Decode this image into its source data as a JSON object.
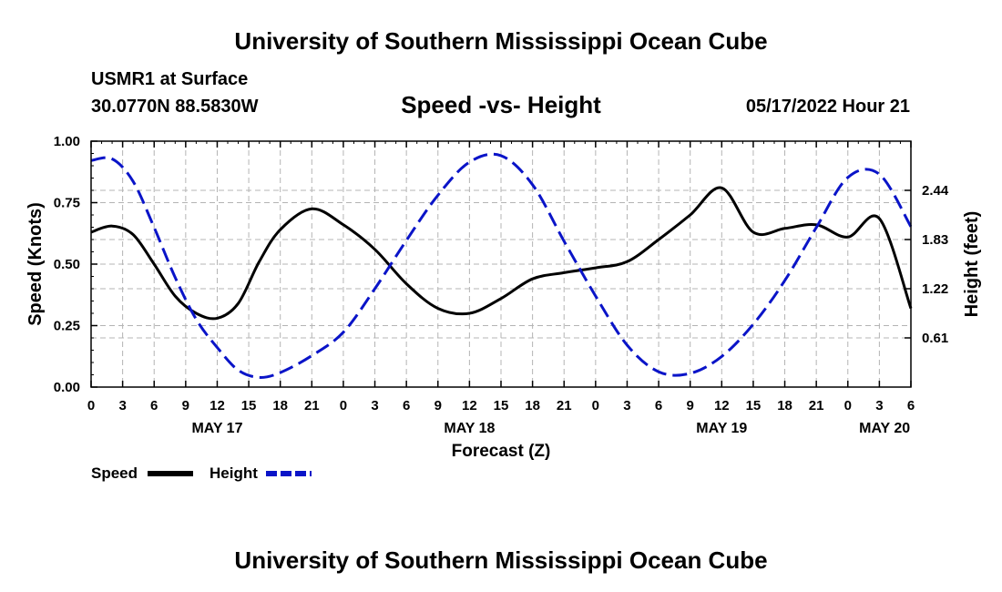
{
  "page": {
    "top_title": "University of Southern Mississippi Ocean Cube",
    "bottom_title": "University of Southern Mississippi Ocean Cube",
    "station": "USMR1 at Surface",
    "location": "30.0770N  88.5830W",
    "chart_title": "Speed -vs- Height",
    "timestamp": "05/17/2022 Hour 21"
  },
  "colors": {
    "speed": "#000000",
    "height": "#0a14c8",
    "grid": "#b4b4b4"
  },
  "chart_data": {
    "type": "line",
    "title": "Speed -vs- Height",
    "xlabel": "Forecast (Z)",
    "ylabel": "Speed (Knots)",
    "y2label": "Height (feet)",
    "x_unit": "hours since 05/17/2022 00Z",
    "xlim": [
      0,
      78
    ],
    "ylim": [
      0,
      1
    ],
    "y2lim": [
      0,
      3.05
    ],
    "grid": true,
    "x_ticks": [
      0,
      3,
      6,
      9,
      12,
      15,
      18,
      21,
      24,
      27,
      30,
      33,
      36,
      39,
      42,
      45,
      48,
      51,
      54,
      57,
      60,
      63,
      66,
      69,
      72,
      75,
      78
    ],
    "x_tick_labels": [
      "0",
      "3",
      "6",
      "9",
      "12",
      "15",
      "18",
      "21",
      "0",
      "3",
      "6",
      "9",
      "12",
      "15",
      "18",
      "21",
      "0",
      "3",
      "6",
      "9",
      "12",
      "15",
      "18",
      "21",
      "0",
      "3",
      "6"
    ],
    "date_labels": [
      {
        "label": "MAY 17",
        "x": 12
      },
      {
        "label": "MAY 18",
        "x": 36
      },
      {
        "label": "MAY 19",
        "x": 60
      },
      {
        "label": "MAY 20",
        "x": 75.5
      }
    ],
    "y_ticks": [
      0,
      0.25,
      0.5,
      0.75,
      1.0
    ],
    "y_tick_labels": [
      "0.00",
      "0.25",
      "0.50",
      "0.75",
      "1.00"
    ],
    "y2_ticks": [
      0.61,
      1.22,
      1.83,
      2.44
    ],
    "y2_tick_labels": [
      "0.61",
      "1.22",
      "1.83",
      "2.44"
    ],
    "legend": {
      "position": "bottom-left",
      "entries": [
        "Speed",
        "Height"
      ]
    },
    "series": [
      {
        "name": "Speed",
        "axis": "left",
        "style": "solid",
        "x": [
          0,
          2,
          4,
          6,
          8,
          10,
          12,
          14,
          16,
          18,
          21,
          24,
          27,
          30,
          33,
          36,
          39,
          42,
          45,
          48,
          51,
          54,
          57,
          60,
          63,
          66,
          69,
          72,
          75,
          78
        ],
        "y": [
          0.63,
          0.655,
          0.62,
          0.5,
          0.37,
          0.3,
          0.28,
          0.34,
          0.51,
          0.64,
          0.725,
          0.66,
          0.56,
          0.42,
          0.32,
          0.3,
          0.36,
          0.44,
          0.465,
          0.485,
          0.51,
          0.6,
          0.7,
          0.81,
          0.63,
          0.645,
          0.66,
          0.61,
          0.685,
          0.32
        ]
      },
      {
        "name": "Height",
        "axis": "right",
        "style": "dashed",
        "x": [
          0,
          2,
          4,
          6,
          8,
          10,
          12,
          14,
          16,
          18,
          21,
          24,
          27,
          30,
          33,
          36,
          39,
          42,
          45,
          48,
          51,
          54,
          57,
          60,
          63,
          66,
          69,
          72,
          75,
          78
        ],
        "y": [
          2.81,
          2.83,
          2.55,
          1.98,
          1.36,
          0.84,
          0.49,
          0.21,
          0.12,
          0.18,
          0.39,
          0.68,
          1.22,
          1.82,
          2.38,
          2.79,
          2.87,
          2.51,
          1.81,
          1.13,
          0.52,
          0.19,
          0.17,
          0.38,
          0.78,
          1.32,
          1.98,
          2.6,
          2.64,
          1.99
        ]
      }
    ]
  }
}
